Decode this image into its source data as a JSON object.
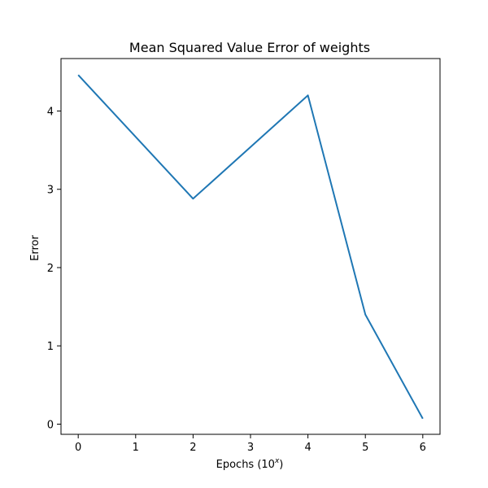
{
  "chart_data": {
    "type": "line",
    "title": "Mean Squared Value Error of weights",
    "xlabel": "Epochs (10^x)",
    "ylabel": "Error",
    "xlim": [
      -0.3,
      6.3
    ],
    "ylim": [
      -0.13,
      4.67
    ],
    "xticks": [
      "0",
      "1",
      "2",
      "3",
      "4",
      "5",
      "6"
    ],
    "yticks": [
      "0",
      "1",
      "2",
      "3",
      "4"
    ],
    "grid": false,
    "series": [
      {
        "x": [
          0,
          2,
          4,
          5,
          6
        ],
        "values": [
          4.46,
          2.88,
          4.2,
          1.4,
          0.07
        ],
        "color": "#1f77b4"
      }
    ]
  }
}
